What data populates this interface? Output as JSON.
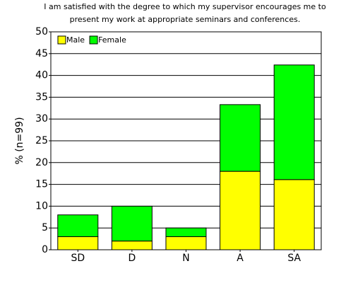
{
  "chart_data": {
    "type": "stacked-bar",
    "title": [
      "I am satisfied with the degree to which my supervisor encourages me to",
      "present my work at appropriate seminars and conferences."
    ],
    "y_label": "% (n=99)",
    "categories": [
      "SD",
      "D",
      "N",
      "A",
      "SA"
    ],
    "series": [
      {
        "name": "Male",
        "color": "#ffff00",
        "values": [
          3,
          2,
          3,
          18,
          16.1
        ]
      },
      {
        "name": "Female",
        "color": "#00ff00",
        "values": [
          5,
          8,
          2,
          15.3,
          26.3
        ]
      }
    ],
    "ylim": [
      0,
      50
    ],
    "yticks": [
      0,
      5,
      10,
      15,
      20,
      25,
      30,
      35,
      40,
      45,
      50
    ],
    "grid": true,
    "legend": "top-left"
  }
}
